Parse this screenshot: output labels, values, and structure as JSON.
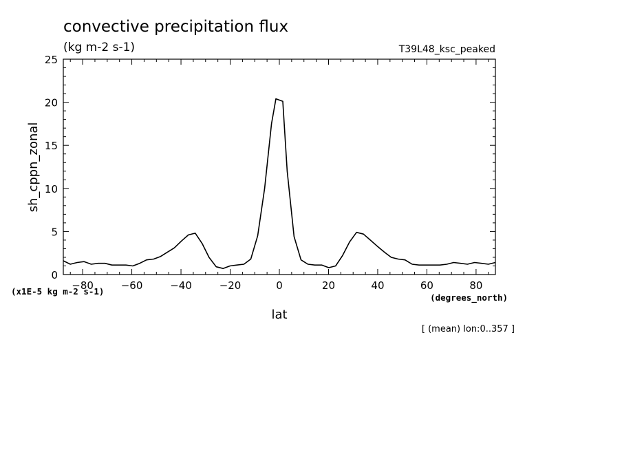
{
  "chart_data": {
    "type": "line",
    "title": "convective precipitation flux",
    "units": "(kg m-2 s-1)",
    "experiment": "T39L48_ksc_peaked",
    "ylabel": "sh_cppn_zonal",
    "xlabel": "lat",
    "xunits": "(degrees_north)",
    "yscale_note": "(x1E-5 kg m-2 s-1)",
    "footer": "[ (mean) lon:0..357 ]",
    "xlim": [
      -87.86,
      87.86
    ],
    "ylim": [
      0,
      25
    ],
    "xticks": [
      -80,
      -60,
      -40,
      -20,
      0,
      20,
      40,
      60,
      80
    ],
    "yticks": [
      0,
      5,
      10,
      15,
      20,
      25
    ],
    "series": [
      {
        "x": [
          -87.86,
          -85.0,
          -82.2,
          -79.4,
          -76.5,
          -73.7,
          -70.9,
          -68.1,
          -65.3,
          -62.4,
          -59.6,
          -56.8,
          -54.0,
          -51.1,
          -48.3,
          -45.5,
          -42.7,
          -39.8,
          -37.0,
          -34.2,
          -31.4,
          -28.6,
          -25.7,
          -22.9,
          -20.1,
          -17.3,
          -14.4,
          -11.6,
          -8.8,
          -6.0,
          -3.2,
          -1.4,
          1.4,
          3.2,
          6.0,
          8.8,
          11.6,
          14.4,
          17.3,
          20.1,
          22.9,
          25.7,
          28.6,
          31.4,
          34.2,
          37.0,
          39.8,
          42.7,
          45.5,
          48.3,
          51.1,
          54.0,
          56.8,
          59.6,
          62.4,
          65.3,
          68.1,
          70.9,
          73.7,
          76.5,
          79.4,
          82.2,
          85.0,
          87.86
        ],
        "values": [
          1.6,
          1.2,
          1.4,
          1.5,
          1.2,
          1.3,
          1.3,
          1.1,
          1.1,
          1.1,
          1.0,
          1.3,
          1.7,
          1.8,
          2.1,
          2.6,
          3.1,
          3.9,
          4.6,
          4.8,
          3.6,
          2.0,
          0.9,
          0.7,
          1.0,
          1.1,
          1.2,
          1.8,
          4.5,
          10.0,
          17.5,
          20.4,
          20.1,
          12.0,
          4.4,
          1.7,
          1.2,
          1.1,
          1.1,
          0.8,
          1.0,
          2.2,
          3.8,
          4.9,
          4.7,
          4.0,
          3.3,
          2.6,
          2.0,
          1.8,
          1.7,
          1.2,
          1.1,
          1.1,
          1.1,
          1.1,
          1.2,
          1.4,
          1.3,
          1.2,
          1.4,
          1.3,
          1.2,
          1.4
        ]
      }
    ]
  }
}
